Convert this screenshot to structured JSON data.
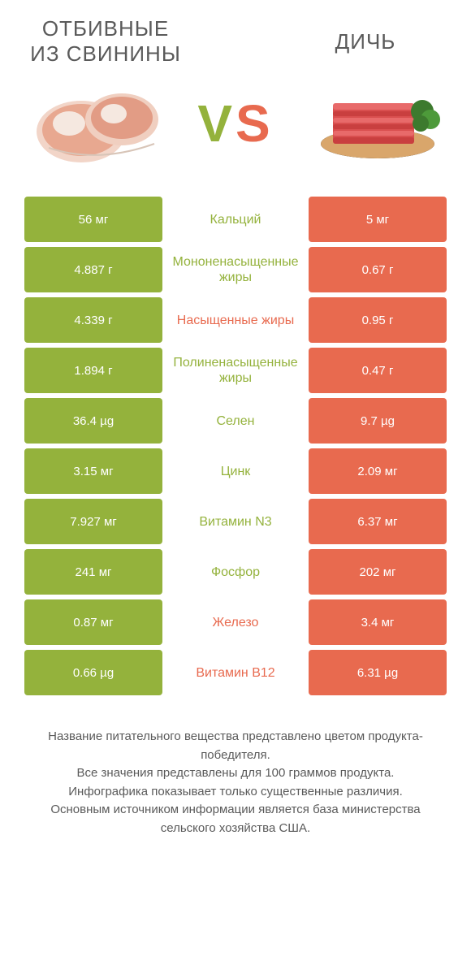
{
  "colors": {
    "green": "#94b23c",
    "red": "#e86a4f",
    "text": "#5a5a5a"
  },
  "header": {
    "left_title": "ОТБИВНЫЕ ИЗ СВИНИНЫ",
    "right_title": "ДИЧЬ",
    "vs": "VS"
  },
  "rows": [
    {
      "left": "56 мг",
      "label": "Кальций",
      "right": "5 мг",
      "winner": "left"
    },
    {
      "left": "4.887 г",
      "label": "Мононенасыщенные жиры",
      "right": "0.67 г",
      "winner": "left"
    },
    {
      "left": "4.339 г",
      "label": "Насыщенные жиры",
      "right": "0.95 г",
      "winner": "right"
    },
    {
      "left": "1.894 г",
      "label": "Полиненасыщенные жиры",
      "right": "0.47 г",
      "winner": "left"
    },
    {
      "left": "36.4 µg",
      "label": "Селен",
      "right": "9.7 µg",
      "winner": "left"
    },
    {
      "left": "3.15 мг",
      "label": "Цинк",
      "right": "2.09 мг",
      "winner": "left"
    },
    {
      "left": "7.927 мг",
      "label": "Витамин N3",
      "right": "6.37 мг",
      "winner": "left"
    },
    {
      "left": "241 мг",
      "label": "Фосфор",
      "right": "202 мг",
      "winner": "left"
    },
    {
      "left": "0.87 мг",
      "label": "Железо",
      "right": "3.4 мг",
      "winner": "right"
    },
    {
      "left": "0.66 µg",
      "label": "Витамин B12",
      "right": "6.31 µg",
      "winner": "right"
    }
  ],
  "footer": {
    "line1": "Название питательного вещества представлено цветом продукта-победителя.",
    "line2": "Все значения представлены для 100 граммов продукта.",
    "line3": "Инфографика показывает только существенные различия.",
    "line4": "Основным источником информации является база министерства сельского хозяйства США."
  }
}
